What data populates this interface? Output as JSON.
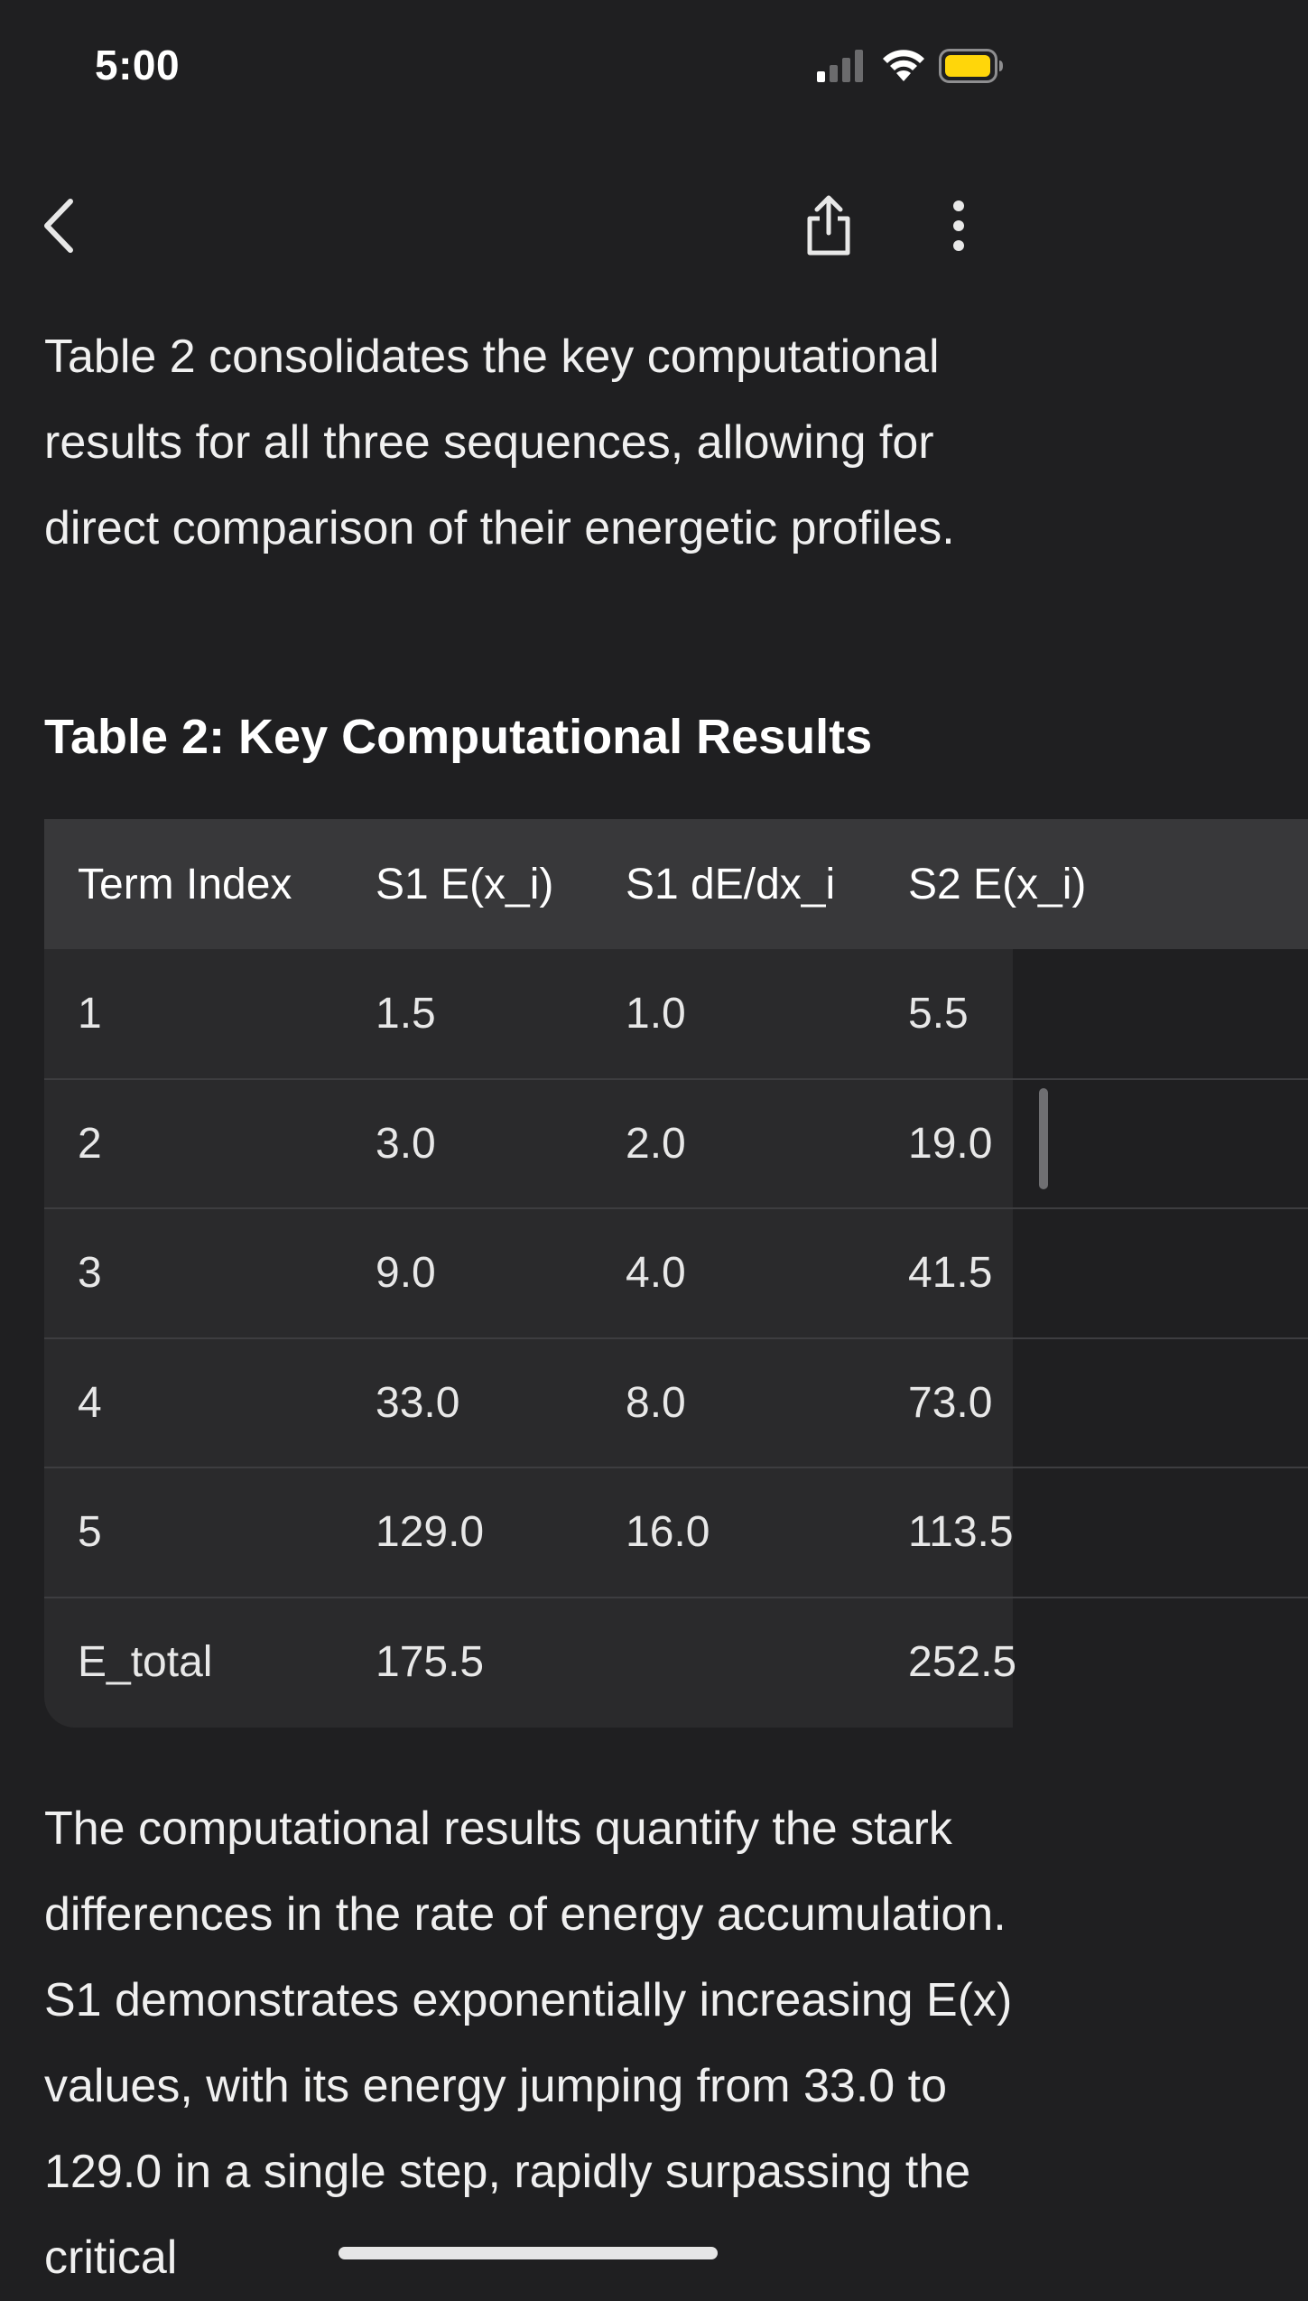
{
  "status_bar": {
    "time": "5:00",
    "signal_icon": "cellular-signal-icon",
    "wifi_icon": "wifi-icon",
    "battery_icon": "battery-icon",
    "battery_color": "#ffd60a"
  },
  "nav": {
    "back_icon": "chevron-left-icon",
    "share_icon": "share-icon",
    "more_icon": "more-vertical-icon"
  },
  "intro_paragraph": "Table 2 consolidates the key computational results for all three sequences, allowing for direct comparison of their energetic profiles.",
  "table": {
    "title": "Table 2: Key Computational Results",
    "headers": [
      "Term Index",
      "S1 E(x_i)",
      "S1 dE/dx_i",
      "S2 E(x_i)"
    ],
    "rows": [
      [
        "1",
        "1.5",
        "1.0",
        "5.5"
      ],
      [
        "2",
        "3.0",
        "2.0",
        "19.0"
      ],
      [
        "3",
        "9.0",
        "4.0",
        "41.5"
      ],
      [
        "4",
        "33.0",
        "8.0",
        "73.0"
      ],
      [
        "5",
        "129.0",
        "16.0",
        "113.5"
      ],
      [
        "E_total",
        "175.5",
        "",
        "252.5"
      ]
    ]
  },
  "results_paragraph": "The computational results quantify the stark differences in the rate of energy accumulation. S1 demonstrates exponentially increasing E(x) values, with its energy jumping from 33.0 to 129.0 in a single step, rapidly surpassing the critical",
  "colors": {
    "background": "#1f1f21",
    "table_header": "#38383a",
    "table_body": "#2a2a2c",
    "text": "#f0f0f0"
  }
}
